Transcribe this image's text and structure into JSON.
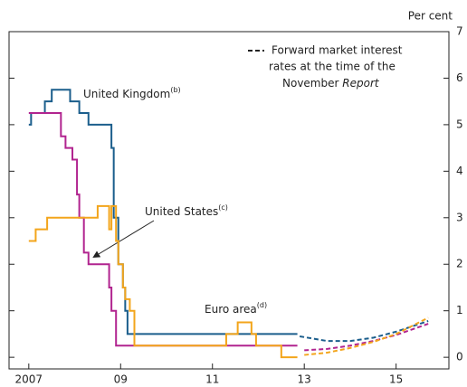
{
  "chart_data": {
    "type": "line",
    "y_axis_label": "Per cent",
    "xlim": [
      2006.57,
      2016.15
    ],
    "ylim": [
      -0.25,
      7
    ],
    "xticks": [
      {
        "value": 2007,
        "label": "2007"
      },
      {
        "value": 2009,
        "label": "09"
      },
      {
        "value": 2011,
        "label": "11"
      },
      {
        "value": 2013,
        "label": "13"
      },
      {
        "value": 2015,
        "label": "15"
      }
    ],
    "yticks": [
      0,
      1,
      2,
      3,
      4,
      5,
      6,
      7
    ],
    "legend": {
      "lines": [
        "Forward market interest",
        "rates at the time of the",
        "November"
      ],
      "italic": "Report",
      "color": "#222"
    },
    "annotations": [
      {
        "text": "United Kingdom",
        "note": "(b)"
      },
      {
        "text": "United States",
        "note": "(c)"
      },
      {
        "text": "Euro area",
        "note": "(d)"
      }
    ],
    "series": [
      {
        "color": "#1b5e8c",
        "step": "post",
        "x": [
          2007.0,
          2007.05,
          2007.35,
          2007.5,
          2007.9,
          2008.1,
          2008.3,
          2008.8,
          2008.85,
          2008.95,
          2009.05,
          2009.1,
          2009.15,
          2012.85
        ],
        "values": [
          5.0,
          5.25,
          5.5,
          5.75,
          5.5,
          5.25,
          5.0,
          4.5,
          3.0,
          2.0,
          1.5,
          1.0,
          0.5,
          0.5
        ]
      },
      {
        "color": "#b1248f",
        "step": "post",
        "x": [
          2007.0,
          2007.7,
          2007.8,
          2007.95,
          2008.05,
          2008.1,
          2008.2,
          2008.3,
          2008.75,
          2008.8,
          2008.9,
          2012.85
        ],
        "values": [
          5.25,
          4.75,
          4.5,
          4.25,
          3.5,
          3.0,
          2.25,
          2.0,
          1.5,
          1.0,
          0.25,
          0.25
        ]
      },
      {
        "color": "#f3a51b",
        "step": "post",
        "x": [
          2007.0,
          2007.15,
          2007.4,
          2008.5,
          2008.75,
          2008.8,
          2008.9,
          2008.95,
          2009.05,
          2009.1,
          2009.2,
          2009.3,
          2011.3,
          2011.55,
          2011.85,
          2011.95,
          2012.5,
          2012.85
        ],
        "values": [
          2.5,
          2.75,
          3.0,
          3.25,
          2.75,
          3.25,
          2.5,
          2.0,
          1.5,
          1.25,
          1.0,
          0.25,
          0.5,
          0.75,
          0.5,
          0.25,
          0.0,
          0.0
        ]
      },
      {
        "color": "#1b5e8c",
        "dashed": true,
        "x": [
          2012.9,
          2013.5,
          2014.0,
          2014.5,
          2015.0,
          2015.7
        ],
        "values": [
          0.45,
          0.35,
          0.35,
          0.42,
          0.55,
          0.78
        ]
      },
      {
        "color": "#b1248f",
        "dashed": true,
        "x": [
          2013.0,
          2013.5,
          2014.0,
          2014.5,
          2015.0,
          2015.7
        ],
        "values": [
          0.15,
          0.18,
          0.25,
          0.35,
          0.48,
          0.72
        ]
      },
      {
        "color": "#f3a51b",
        "dashed": true,
        "x": [
          2013.0,
          2013.5,
          2014.0,
          2014.5,
          2015.0,
          2015.7
        ],
        "values": [
          0.05,
          0.1,
          0.2,
          0.33,
          0.5,
          0.85
        ]
      }
    ]
  }
}
